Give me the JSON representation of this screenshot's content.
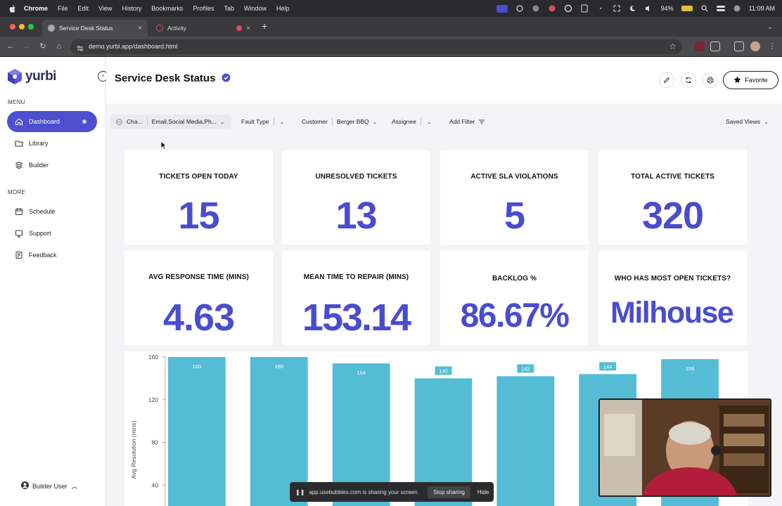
{
  "menubar": {
    "app": "Chrome",
    "items": [
      "File",
      "Edit",
      "View",
      "History",
      "Bookmarks",
      "Profiles",
      "Tab",
      "Window",
      "Help"
    ],
    "battery": "94%",
    "time": "11:09 AM"
  },
  "tabs": [
    {
      "label": "Service Desk Status",
      "active": true
    },
    {
      "label": "Activity",
      "active": false
    }
  ],
  "address": {
    "url": "demo.yurbi.app/dashboard.html"
  },
  "sidebar": {
    "brand": "yurbi",
    "menu_label": "MENU",
    "menu_items": [
      {
        "label": "Dashboard",
        "icon": "home-icon",
        "active": true
      },
      {
        "label": "Library",
        "icon": "folder-icon",
        "active": false
      },
      {
        "label": "Builder",
        "icon": "layers-icon",
        "active": false
      }
    ],
    "more_label": "MORE",
    "more_items": [
      {
        "label": "Schedule",
        "icon": "calendar-icon"
      },
      {
        "label": "Support",
        "icon": "support-icon"
      },
      {
        "label": "Feedback",
        "icon": "feedback-icon"
      }
    ],
    "user": "Builder User"
  },
  "header": {
    "title": "Service Desk Status",
    "favorite_label": "Favorite"
  },
  "filters": {
    "channel_label": "Cha...",
    "channel_value": "Email,Social Media,Ph...",
    "fault_type": "Fault Type",
    "customer_label": "Customer",
    "customer_value": "Berger BBQ",
    "assignee": "Assignee",
    "add_filter": "Add Filter",
    "saved_views": "Saved Views"
  },
  "kpis": [
    {
      "title": "TICKETS OPEN TODAY",
      "value": "15"
    },
    {
      "title": "UNRESOLVED TICKETS",
      "value": "13"
    },
    {
      "title": "ACTIVE SLA VIOLATIONS",
      "value": "5"
    },
    {
      "title": "TOTAL ACTIVE TICKETS",
      "value": "320"
    },
    {
      "title": "AVG RESPONSE TIME (MINS)",
      "value": "4.63"
    },
    {
      "title": "MEAN TIME TO REPAIR (MINS)",
      "value": "153.14"
    },
    {
      "title": "BACKLOG %",
      "value": "86.67%"
    },
    {
      "title": "WHO HAS MOST OPEN TICKETS?",
      "value": "Milhouse"
    }
  ],
  "chart_data": {
    "type": "bar",
    "ylabel": "Avg Resolution (mins)",
    "yticks": [
      40,
      80,
      120,
      160
    ],
    "ylim": [
      0,
      160
    ],
    "values": [
      160,
      160,
      154,
      140,
      142,
      144,
      158
    ],
    "labels": [
      "160",
      "160",
      "154",
      "140",
      "142",
      "144",
      "158"
    ],
    "color": "#55bcd6"
  },
  "sharebar": {
    "text": "app.usebubbles.com is sharing your screen.",
    "stop": "Stop sharing",
    "hide": "Hide"
  },
  "colors": {
    "accent": "#4d4fcf",
    "kpi": "#4a4ccf",
    "bar": "#55bcd6"
  }
}
